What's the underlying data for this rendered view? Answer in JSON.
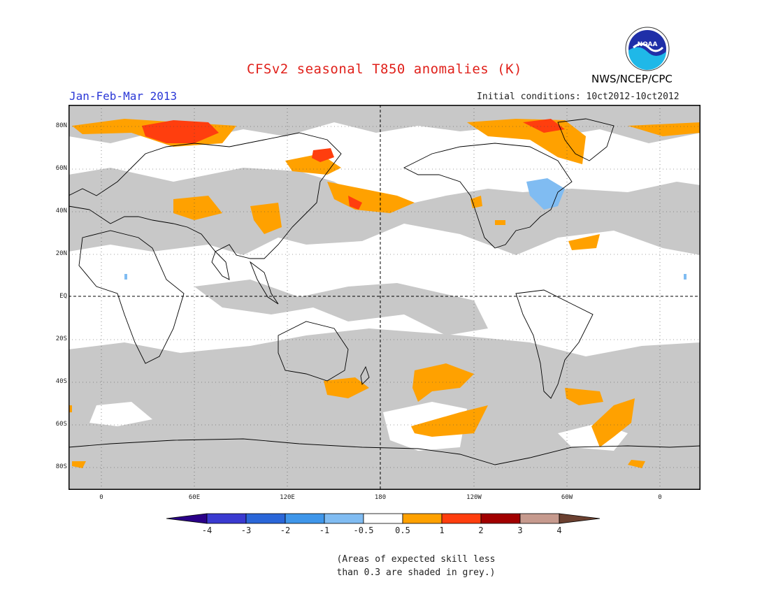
{
  "header": {
    "title": "CFSv2 seasonal T850 anomalies (K)",
    "period": "Jan-Feb-Mar 2013",
    "initial_conditions": "Initial conditions: 10ct2012-10ct2012",
    "agency": "NWS/NCEP/CPC",
    "logo_text": "NOAA"
  },
  "map": {
    "latitude_labels": [
      "80N",
      "60N",
      "40N",
      "20N",
      "EQ",
      "20S",
      "40S",
      "60S",
      "80S"
    ],
    "longitude_labels": [
      "0",
      "60E",
      "120E",
      "180",
      "120W",
      "60W",
      "0"
    ],
    "land_color": "#000000",
    "low_skill_color": "#c8c8c8"
  },
  "colorbar": {
    "labels": [
      "-4",
      "-3",
      "-2",
      "-1",
      "-0.5",
      "0.5",
      "1",
      "2",
      "3",
      "4"
    ],
    "colors": [
      "#2a0088",
      "#3a3ad0",
      "#2a66d8",
      "#3f96ea",
      "#80bcf2",
      "#ffffff",
      "#ffa100",
      "#ff3e0e",
      "#a10000",
      "#c69a8e",
      "#6b4030"
    ]
  },
  "note": {
    "line1": "(Areas of expected skill less",
    "line2": "than 0.3 are shaded in grey.)"
  }
}
